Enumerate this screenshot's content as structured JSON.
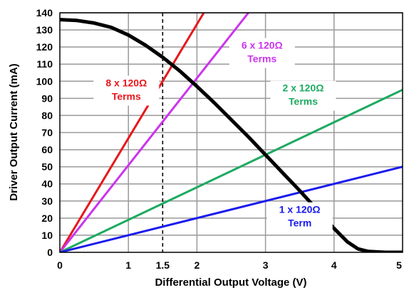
{
  "chart_data": {
    "type": "line",
    "xlabel": "Differential Output Voltage (V)",
    "ylabel": "Driver Output Current (mA)",
    "xlim": [
      0,
      5
    ],
    "ylim": [
      0,
      140
    ],
    "x_ticks": [
      {
        "value": 0,
        "label": "0"
      },
      {
        "value": 1,
        "label": "1"
      },
      {
        "value": 1.5,
        "label": "1.5"
      },
      {
        "value": 2,
        "label": "2"
      },
      {
        "value": 3,
        "label": "3"
      },
      {
        "value": 4,
        "label": "4"
      },
      {
        "value": 5,
        "label": "5"
      }
    ],
    "y_ticks": [
      0,
      10,
      20,
      30,
      40,
      50,
      60,
      70,
      80,
      90,
      100,
      110,
      120,
      130,
      140
    ],
    "x_gridlines": [
      1,
      2,
      3,
      4
    ],
    "y_gridlines": [
      10,
      20,
      30,
      40,
      50,
      60,
      70,
      80,
      90,
      100,
      110,
      120,
      130,
      140
    ],
    "grid": true,
    "reference_line": {
      "x": 1.5,
      "style": "dashed",
      "color": "#000000"
    },
    "series": [
      {
        "key": "driver-curve",
        "color": "#000000",
        "points": [
          {
            "x": 0,
            "y": 136
          },
          {
            "x": 0.25,
            "y": 135.5
          },
          {
            "x": 0.5,
            "y": 134
          },
          {
            "x": 0.75,
            "y": 131.5
          },
          {
            "x": 1.0,
            "y": 127
          },
          {
            "x": 1.25,
            "y": 121
          },
          {
            "x": 1.5,
            "y": 114
          },
          {
            "x": 1.75,
            "y": 106
          },
          {
            "x": 2.0,
            "y": 97
          },
          {
            "x": 2.25,
            "y": 87.5
          },
          {
            "x": 2.5,
            "y": 77.5
          },
          {
            "x": 2.75,
            "y": 67.5
          },
          {
            "x": 3.0,
            "y": 57
          },
          {
            "x": 3.25,
            "y": 46.5
          },
          {
            "x": 3.5,
            "y": 36
          },
          {
            "x": 3.75,
            "y": 25
          },
          {
            "x": 4.0,
            "y": 14
          },
          {
            "x": 4.2,
            "y": 6
          },
          {
            "x": 4.35,
            "y": 2
          },
          {
            "x": 4.5,
            "y": 0.5
          },
          {
            "x": 4.75,
            "y": 0
          },
          {
            "x": 5.0,
            "y": 0
          }
        ]
      },
      {
        "key": "load-8-terms",
        "color": "#e8171b",
        "points": [
          {
            "x": 0,
            "y": 0
          },
          {
            "x": 2.1,
            "y": 140
          }
        ]
      },
      {
        "key": "load-6-terms",
        "color": "#cc33ee",
        "points": [
          {
            "x": 0,
            "y": 0
          },
          {
            "x": 2.75,
            "y": 140
          }
        ]
      },
      {
        "key": "load-2-terms",
        "color": "#1eaa62",
        "points": [
          {
            "x": 0,
            "y": 0
          },
          {
            "x": 5.0,
            "y": 95
          }
        ]
      },
      {
        "key": "load-1-term",
        "color": "#1a1aee",
        "points": [
          {
            "x": 0,
            "y": 0
          },
          {
            "x": 5.0,
            "y": 50
          }
        ]
      }
    ],
    "annotations": [
      {
        "key": "label-8-terms",
        "color": "#e8171b",
        "lines": [
          "8 x 120Ω",
          "Terms"
        ],
        "x": 0.97,
        "y": 97
      },
      {
        "key": "label-6-terms",
        "color": "#cc33ee",
        "lines": [
          "6 x 120Ω",
          "Terms"
        ],
        "x": 2.95,
        "y": 119
      },
      {
        "key": "label-2-terms",
        "color": "#1eaa62",
        "lines": [
          "2 x 120Ω",
          "Terms"
        ],
        "x": 3.55,
        "y": 94
      },
      {
        "key": "label-1-term",
        "color": "#1a1aee",
        "lines": [
          "1 x 120Ω",
          "Term"
        ],
        "x": 3.5,
        "y": 23
      }
    ]
  }
}
